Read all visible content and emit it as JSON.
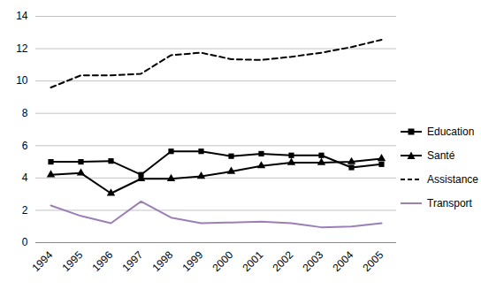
{
  "chart_data": {
    "type": "line",
    "categories": [
      "1994",
      "1995",
      "1996",
      "1997",
      "1998",
      "1999",
      "2000",
      "2001",
      "2002",
      "2003",
      "2004",
      "2005"
    ],
    "series": [
      {
        "name": "Education",
        "color": "#000000",
        "marker": "square",
        "line_style": "solid",
        "values": [
          5.0,
          5.0,
          5.05,
          4.2,
          5.65,
          5.65,
          5.35,
          5.5,
          5.4,
          5.4,
          4.65,
          4.85
        ]
      },
      {
        "name": "Santé",
        "color": "#000000",
        "marker": "triangle",
        "line_style": "solid",
        "values": [
          4.2,
          4.3,
          3.05,
          3.95,
          3.95,
          4.1,
          4.4,
          4.75,
          4.95,
          4.95,
          5.0,
          5.2
        ]
      },
      {
        "name": "Assistance",
        "color": "#000000",
        "line_style": "dashed",
        "values": [
          9.6,
          10.35,
          10.35,
          10.45,
          11.6,
          11.75,
          11.35,
          11.3,
          11.5,
          11.75,
          12.1,
          12.55
        ]
      },
      {
        "name": "Transport",
        "color": "#9b7fb6",
        "line_style": "solid",
        "values": [
          2.3,
          1.65,
          1.2,
          2.55,
          1.55,
          1.2,
          1.25,
          1.3,
          1.2,
          0.95,
          1.0,
          1.2
        ]
      }
    ],
    "ylim": [
      0,
      14
    ],
    "yticks": [
      0,
      2,
      4,
      6,
      8,
      10,
      12,
      14
    ],
    "grid": true,
    "legend": "right"
  }
}
